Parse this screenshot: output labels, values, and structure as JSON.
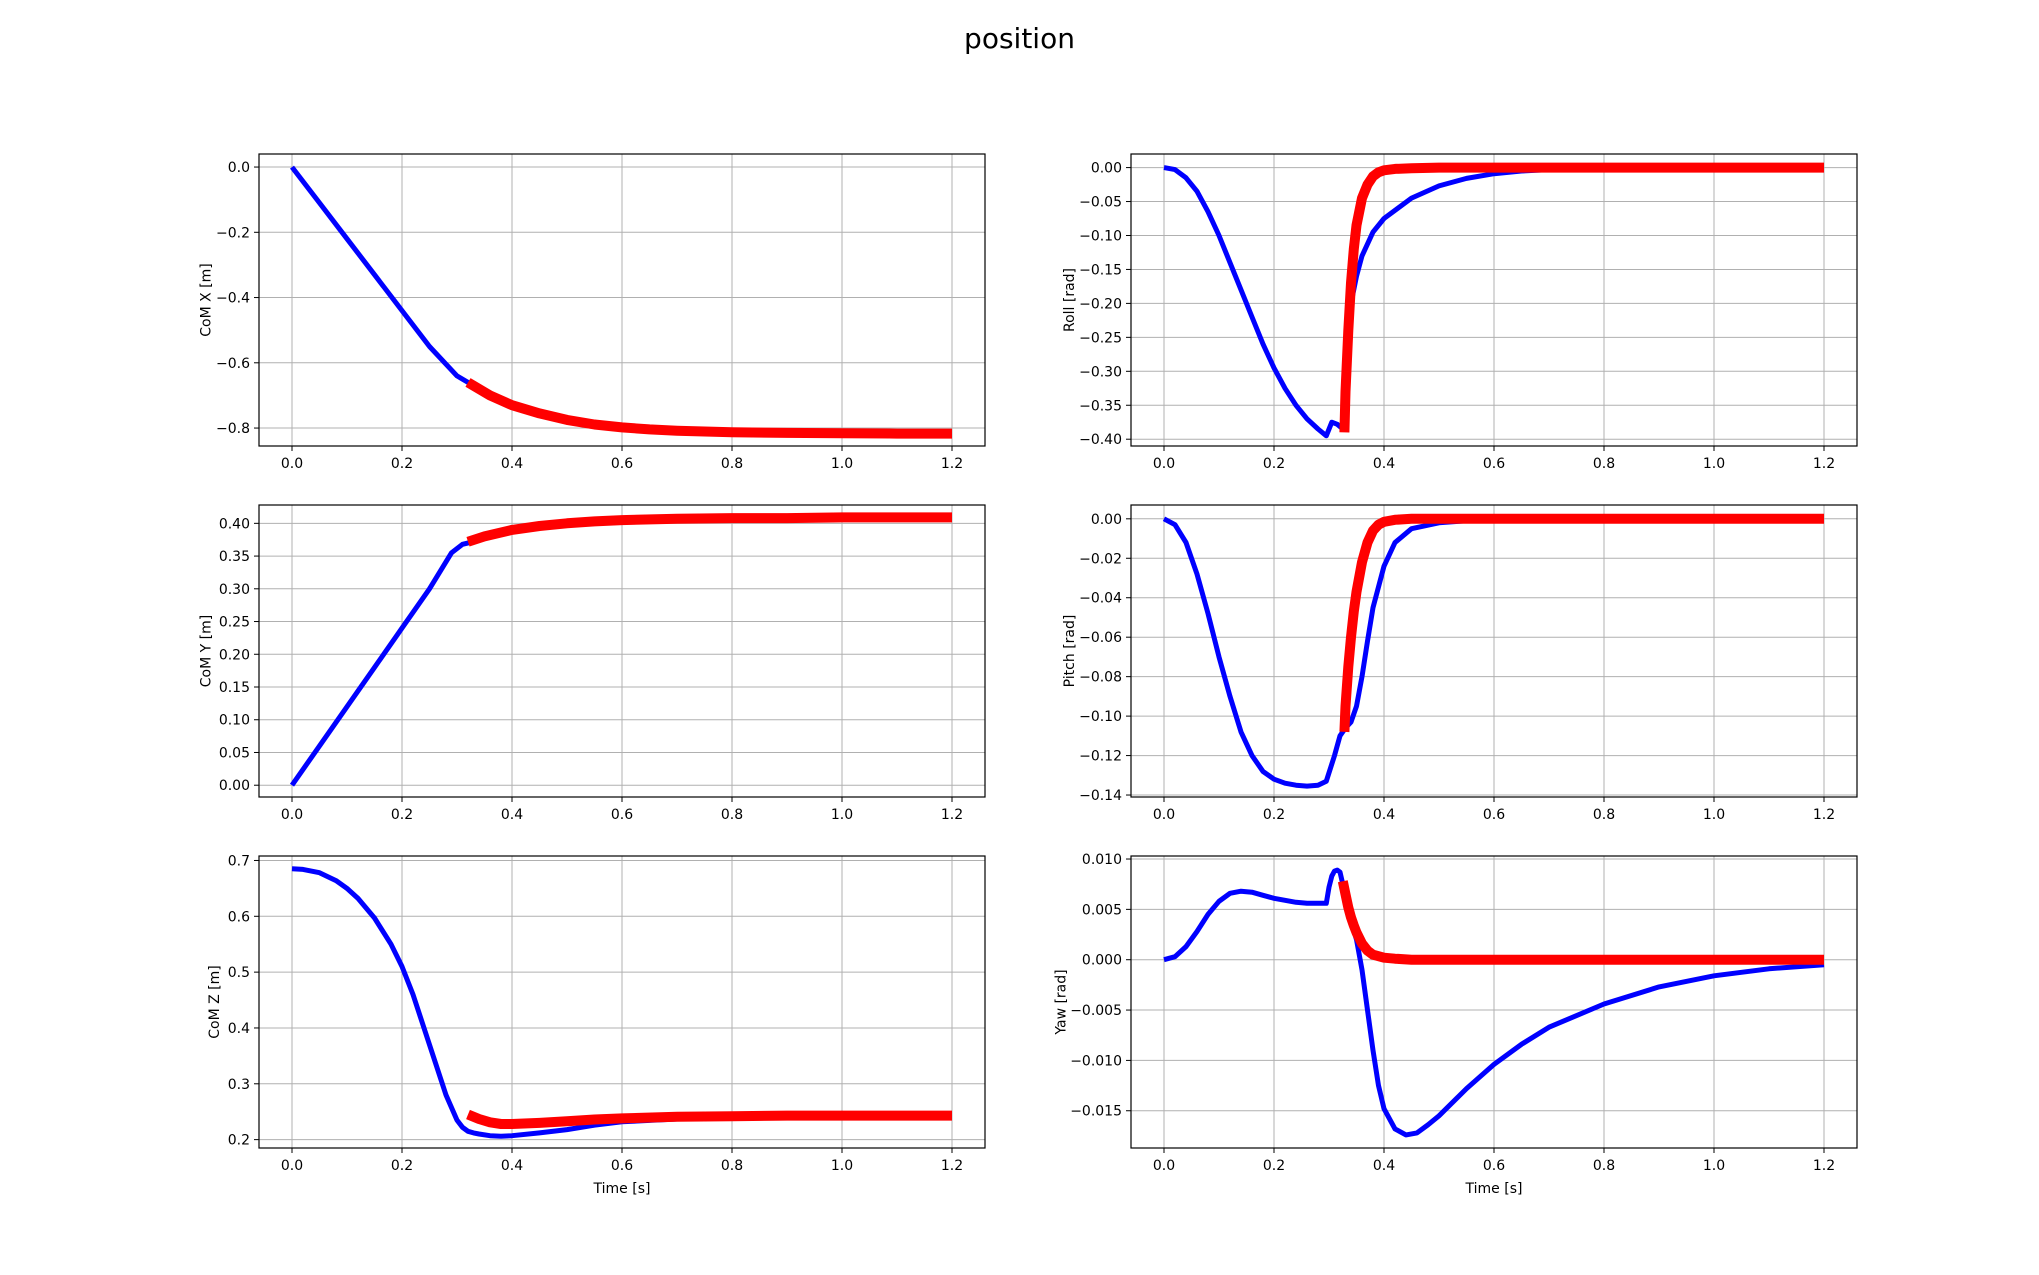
{
  "figure": {
    "title": "position"
  },
  "colors": {
    "blue": "#0000ff",
    "red": "#ff0000",
    "grid": "#b0b0b0"
  },
  "chart_data": [
    {
      "type": "line",
      "id": "com-x",
      "ylabel": "CoM X [m]",
      "xlabel": "",
      "xlim": [
        -0.06,
        1.26
      ],
      "ylim": [
        -0.855,
        0.04
      ],
      "xticks": [
        "0.0",
        "0.2",
        "0.4",
        "0.6",
        "0.8",
        "1.0",
        "1.2"
      ],
      "xtick_values": [
        0,
        0.2,
        0.4,
        0.6,
        0.8,
        1.0,
        1.2
      ],
      "yticks": [
        "0.0",
        "−0.2",
        "−0.4",
        "−0.6",
        "−0.8"
      ],
      "ytick_values": [
        0,
        -0.2,
        -0.4,
        -0.6,
        -0.8
      ],
      "grid": true,
      "series": [
        {
          "color": "blue",
          "width": 5,
          "x": [
            0,
            0.05,
            0.1,
            0.15,
            0.2,
            0.25,
            0.3,
            0.32,
            0.33
          ],
          "y": [
            0,
            -0.11,
            -0.22,
            -0.33,
            -0.44,
            -0.55,
            -0.64,
            -0.66,
            -0.665
          ]
        },
        {
          "color": "red",
          "width": 10,
          "x": [
            0.32,
            0.34,
            0.36,
            0.38,
            0.4,
            0.45,
            0.5,
            0.55,
            0.6,
            0.65,
            0.7,
            0.8,
            0.9,
            1.0,
            1.1,
            1.2
          ],
          "y": [
            -0.66,
            -0.68,
            -0.7,
            -0.715,
            -0.73,
            -0.755,
            -0.775,
            -0.789,
            -0.798,
            -0.804,
            -0.808,
            -0.813,
            -0.815,
            -0.816,
            -0.817,
            -0.817
          ]
        }
      ]
    },
    {
      "type": "line",
      "id": "roll",
      "ylabel": "Roll [rad]",
      "xlabel": "",
      "xlim": [
        -0.06,
        1.26
      ],
      "ylim": [
        -0.41,
        0.02
      ],
      "xticks": [
        "0.0",
        "0.2",
        "0.4",
        "0.6",
        "0.8",
        "1.0",
        "1.2"
      ],
      "xtick_values": [
        0,
        0.2,
        0.4,
        0.6,
        0.8,
        1.0,
        1.2
      ],
      "yticks": [
        "0.00",
        "−0.05",
        "−0.10",
        "−0.15",
        "−0.20",
        "−0.25",
        "−0.30",
        "−0.35",
        "−0.40"
      ],
      "ytick_values": [
        0,
        -0.05,
        -0.1,
        -0.15,
        -0.2,
        -0.25,
        -0.3,
        -0.35,
        -0.4
      ],
      "grid": true,
      "series": [
        {
          "color": "blue",
          "width": 5,
          "x": [
            0,
            0.02,
            0.04,
            0.06,
            0.08,
            0.1,
            0.12,
            0.14,
            0.16,
            0.18,
            0.2,
            0.22,
            0.24,
            0.26,
            0.28,
            0.295,
            0.305,
            0.315,
            0.325,
            0.33,
            0.335,
            0.34,
            0.35,
            0.36,
            0.38,
            0.4,
            0.45,
            0.5,
            0.55,
            0.6,
            0.65,
            0.7,
            0.8,
            0.9,
            1.0,
            1.1,
            1.2
          ],
          "y": [
            0,
            -0.003,
            -0.015,
            -0.035,
            -0.065,
            -0.1,
            -0.14,
            -0.18,
            -0.22,
            -0.26,
            -0.295,
            -0.325,
            -0.35,
            -0.37,
            -0.385,
            -0.395,
            -0.375,
            -0.378,
            -0.385,
            -0.33,
            -0.26,
            -0.2,
            -0.16,
            -0.13,
            -0.095,
            -0.075,
            -0.045,
            -0.027,
            -0.016,
            -0.009,
            -0.005,
            -0.003,
            -0.001,
            0,
            0,
            0,
            0
          ]
        },
        {
          "color": "red",
          "width": 10,
          "x": [
            0.328,
            0.33,
            0.335,
            0.34,
            0.345,
            0.35,
            0.36,
            0.37,
            0.38,
            0.39,
            0.4,
            0.42,
            0.45,
            0.5,
            0.6,
            0.8,
            1.0,
            1.2
          ],
          "y": [
            -0.39,
            -0.33,
            -0.24,
            -0.17,
            -0.12,
            -0.085,
            -0.045,
            -0.025,
            -0.013,
            -0.007,
            -0.004,
            -0.002,
            -0.001,
            0,
            0,
            0,
            0,
            0
          ]
        }
      ]
    },
    {
      "type": "line",
      "id": "com-y",
      "ylabel": "CoM Y [m]",
      "xlabel": "",
      "xlim": [
        -0.06,
        1.26
      ],
      "ylim": [
        -0.018,
        0.428
      ],
      "xticks": [
        "0.0",
        "0.2",
        "0.4",
        "0.6",
        "0.8",
        "1.0",
        "1.2"
      ],
      "xtick_values": [
        0,
        0.2,
        0.4,
        0.6,
        0.8,
        1.0,
        1.2
      ],
      "yticks": [
        "0.40",
        "0.35",
        "0.30",
        "0.25",
        "0.20",
        "0.15",
        "0.10",
        "0.05",
        "0.00"
      ],
      "ytick_values": [
        0.4,
        0.35,
        0.3,
        0.25,
        0.2,
        0.15,
        0.1,
        0.05,
        0
      ],
      "grid": true,
      "series": [
        {
          "color": "blue",
          "width": 5,
          "x": [
            0,
            0.05,
            0.1,
            0.15,
            0.2,
            0.25,
            0.29,
            0.31,
            0.33
          ],
          "y": [
            0,
            0.06,
            0.12,
            0.18,
            0.24,
            0.3,
            0.355,
            0.368,
            0.372
          ]
        },
        {
          "color": "red",
          "width": 10,
          "x": [
            0.32,
            0.35,
            0.4,
            0.45,
            0.5,
            0.55,
            0.6,
            0.7,
            0.8,
            0.9,
            1.0,
            1.1,
            1.2
          ],
          "y": [
            0.372,
            0.38,
            0.39,
            0.396,
            0.4,
            0.403,
            0.405,
            0.407,
            0.408,
            0.408,
            0.409,
            0.409,
            0.409
          ]
        }
      ]
    },
    {
      "type": "line",
      "id": "pitch",
      "ylabel": "Pitch [rad]",
      "xlabel": "",
      "xlim": [
        -0.06,
        1.26
      ],
      "ylim": [
        -0.141,
        0.007
      ],
      "xticks": [
        "0.0",
        "0.2",
        "0.4",
        "0.6",
        "0.8",
        "1.0",
        "1.2"
      ],
      "xtick_values": [
        0,
        0.2,
        0.4,
        0.6,
        0.8,
        1.0,
        1.2
      ],
      "yticks": [
        "0.00",
        "−0.02",
        "−0.04",
        "−0.06",
        "−0.08",
        "−0.10",
        "−0.12",
        "−0.14"
      ],
      "ytick_values": [
        0,
        -0.02,
        -0.04,
        -0.06,
        -0.08,
        -0.1,
        -0.12,
        -0.14
      ],
      "grid": true,
      "series": [
        {
          "color": "blue",
          "width": 5,
          "x": [
            0,
            0.02,
            0.04,
            0.06,
            0.08,
            0.1,
            0.12,
            0.14,
            0.16,
            0.18,
            0.2,
            0.22,
            0.24,
            0.26,
            0.28,
            0.295,
            0.31,
            0.32,
            0.33,
            0.34,
            0.35,
            0.36,
            0.37,
            0.38,
            0.4,
            0.42,
            0.45,
            0.5,
            0.55,
            0.6,
            0.7,
            0.8,
            1.0,
            1.2
          ],
          "y": [
            0,
            -0.003,
            -0.012,
            -0.028,
            -0.048,
            -0.07,
            -0.09,
            -0.108,
            -0.12,
            -0.128,
            -0.132,
            -0.134,
            -0.135,
            -0.1355,
            -0.135,
            -0.133,
            -0.12,
            -0.11,
            -0.106,
            -0.103,
            -0.095,
            -0.08,
            -0.062,
            -0.045,
            -0.024,
            -0.012,
            -0.005,
            -0.002,
            -0.001,
            0,
            0,
            0,
            0,
            0
          ]
        },
        {
          "color": "red",
          "width": 10,
          "x": [
            0.328,
            0.33,
            0.335,
            0.34,
            0.345,
            0.35,
            0.36,
            0.37,
            0.38,
            0.39,
            0.4,
            0.42,
            0.45,
            0.5,
            0.6,
            0.8,
            1.0,
            1.2
          ],
          "y": [
            -0.108,
            -0.095,
            -0.075,
            -0.06,
            -0.047,
            -0.037,
            -0.022,
            -0.012,
            -0.006,
            -0.003,
            -0.0015,
            -0.0005,
            0,
            0,
            0,
            0,
            0,
            0
          ]
        }
      ]
    },
    {
      "type": "line",
      "id": "com-z",
      "ylabel": "CoM Z [m]",
      "xlabel": "Time [s]",
      "xlim": [
        -0.06,
        1.26
      ],
      "ylim": [
        0.185,
        0.708
      ],
      "xticks": [
        "0.0",
        "0.2",
        "0.4",
        "0.6",
        "0.8",
        "1.0",
        "1.2"
      ],
      "xtick_values": [
        0,
        0.2,
        0.4,
        0.6,
        0.8,
        1.0,
        1.2
      ],
      "yticks": [
        "0.7",
        "0.6",
        "0.5",
        "0.4",
        "0.3",
        "0.2"
      ],
      "ytick_values": [
        0.7,
        0.6,
        0.5,
        0.4,
        0.3,
        0.2
      ],
      "grid": true,
      "series": [
        {
          "color": "blue",
          "width": 5,
          "x": [
            0,
            0.02,
            0.05,
            0.08,
            0.1,
            0.12,
            0.15,
            0.18,
            0.2,
            0.22,
            0.24,
            0.26,
            0.28,
            0.3,
            0.31,
            0.32,
            0.33,
            0.34,
            0.36,
            0.38,
            0.4,
            0.45,
            0.5,
            0.55,
            0.6,
            0.7,
            0.8,
            0.9,
            1.0,
            1.2
          ],
          "y": [
            0.685,
            0.684,
            0.678,
            0.664,
            0.65,
            0.632,
            0.597,
            0.55,
            0.51,
            0.46,
            0.4,
            0.34,
            0.28,
            0.235,
            0.222,
            0.215,
            0.212,
            0.21,
            0.207,
            0.206,
            0.207,
            0.212,
            0.218,
            0.226,
            0.232,
            0.237,
            0.239,
            0.24,
            0.241,
            0.242
          ]
        },
        {
          "color": "red",
          "width": 10,
          "x": [
            0.32,
            0.34,
            0.36,
            0.38,
            0.4,
            0.45,
            0.5,
            0.55,
            0.6,
            0.7,
            0.8,
            0.9,
            1.0,
            1.1,
            1.2
          ],
          "y": [
            0.245,
            0.237,
            0.231,
            0.228,
            0.228,
            0.23,
            0.233,
            0.236,
            0.238,
            0.241,
            0.242,
            0.243,
            0.243,
            0.243,
            0.243
          ]
        }
      ]
    },
    {
      "type": "line",
      "id": "yaw",
      "ylabel": "Yaw [rad]",
      "xlabel": "Time [s]",
      "xlim": [
        -0.06,
        1.26
      ],
      "ylim": [
        -0.0187,
        0.0103
      ],
      "xticks": [
        "0.0",
        "0.2",
        "0.4",
        "0.6",
        "0.8",
        "1.0",
        "1.2"
      ],
      "xtick_values": [
        0,
        0.2,
        0.4,
        0.6,
        0.8,
        1.0,
        1.2
      ],
      "yticks": [
        "0.010",
        "0.005",
        "0.000",
        "−0.005",
        "−0.010",
        "−0.015"
      ],
      "ytick_values": [
        0.01,
        0.005,
        0,
        -0.005,
        -0.01,
        -0.015
      ],
      "grid": true,
      "series": [
        {
          "color": "blue",
          "width": 5,
          "x": [
            0,
            0.02,
            0.04,
            0.06,
            0.08,
            0.1,
            0.12,
            0.14,
            0.16,
            0.18,
            0.2,
            0.22,
            0.24,
            0.26,
            0.28,
            0.295,
            0.3,
            0.305,
            0.31,
            0.315,
            0.32,
            0.325,
            0.33,
            0.335,
            0.34,
            0.35,
            0.36,
            0.37,
            0.38,
            0.39,
            0.4,
            0.42,
            0.44,
            0.46,
            0.48,
            0.5,
            0.55,
            0.6,
            0.65,
            0.7,
            0.8,
            0.9,
            1.0,
            1.1,
            1.2
          ],
          "y": [
            0,
            0.0003,
            0.0013,
            0.0028,
            0.0045,
            0.0058,
            0.0066,
            0.0068,
            0.0067,
            0.0064,
            0.0061,
            0.0059,
            0.0057,
            0.0056,
            0.0056,
            0.0056,
            0.0072,
            0.0083,
            0.0088,
            0.0089,
            0.0087,
            0.0075,
            0.0058,
            0.0048,
            0.0038,
            0.002,
            -0.001,
            -0.005,
            -0.009,
            -0.0125,
            -0.0148,
            -0.0168,
            -0.0174,
            -0.0172,
            -0.0164,
            -0.0155,
            -0.0128,
            -0.0104,
            -0.0084,
            -0.0067,
            -0.0044,
            -0.0027,
            -0.0016,
            -0.0009,
            -0.0005
          ]
        },
        {
          "color": "red",
          "width": 10,
          "x": [
            0.325,
            0.33,
            0.335,
            0.34,
            0.345,
            0.35,
            0.36,
            0.37,
            0.38,
            0.4,
            0.42,
            0.45,
            0.5,
            0.6,
            0.8,
            1.0,
            1.2
          ],
          "y": [
            0.0078,
            0.0065,
            0.0052,
            0.0042,
            0.0034,
            0.0027,
            0.0016,
            0.0009,
            0.0005,
            0.0002,
            0.0001,
            0,
            0,
            0,
            0,
            0,
            0
          ]
        }
      ]
    }
  ]
}
